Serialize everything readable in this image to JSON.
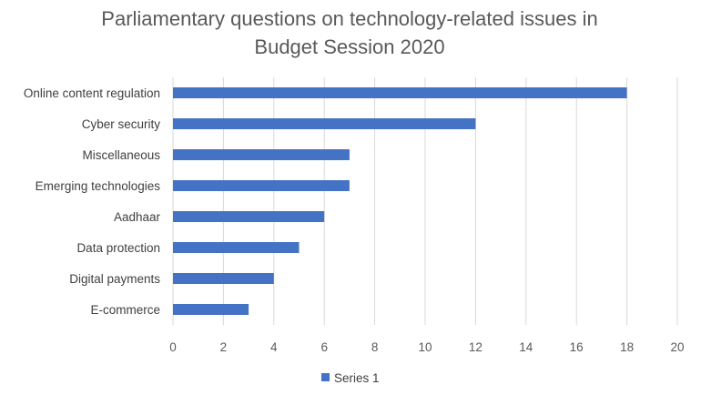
{
  "chart_data": {
    "type": "bar",
    "orientation": "horizontal",
    "title": "Parliamentary questions on technology-related issues in Budget Session 2020",
    "title_lines": [
      "Parliamentary questions on technology-related issues in",
      "Budget Session 2020"
    ],
    "categories": [
      "Online content regulation",
      "Cyber security",
      "Miscellaneous",
      "Emerging technologies",
      "Aadhaar",
      "Data protection",
      "Digital payments",
      "E-commerce"
    ],
    "series": [
      {
        "name": "Series 1",
        "values": [
          18,
          12,
          7,
          7,
          6,
          5,
          4,
          3
        ],
        "color": "#4472c4"
      }
    ],
    "xlim": [
      0,
      20
    ],
    "xticks": [
      "0",
      "2",
      "4",
      "6",
      "8",
      "10",
      "12",
      "14",
      "16",
      "18",
      "20"
    ],
    "grid": true,
    "legend": "bottom"
  }
}
